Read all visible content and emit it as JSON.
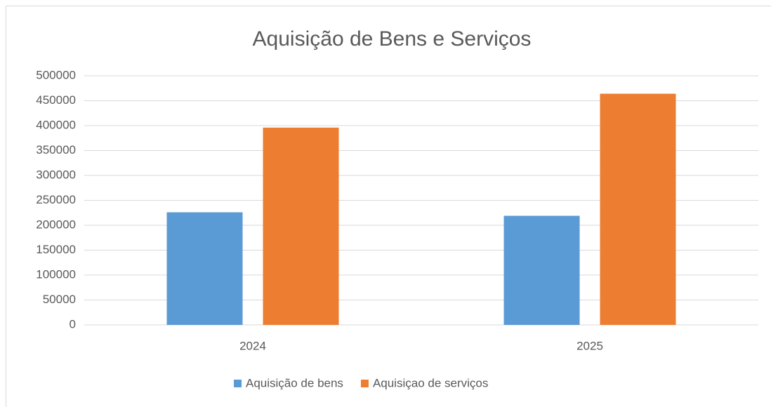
{
  "chart_data": {
    "type": "bar",
    "title": "Aquisição de Bens e Serviços",
    "categories": [
      "2024",
      "2025"
    ],
    "series": [
      {
        "name": "Aquisição de bens",
        "color": "#5b9bd5",
        "values": [
          226000,
          219000
        ]
      },
      {
        "name": "Aquisiçao de serviços",
        "color": "#ed7d31",
        "values": [
          396000,
          464000
        ]
      }
    ],
    "ylim": [
      0,
      500000
    ],
    "yticks": [
      0,
      50000,
      100000,
      150000,
      200000,
      250000,
      300000,
      350000,
      400000,
      450000,
      500000
    ],
    "grid": true,
    "legend": "bottom"
  }
}
